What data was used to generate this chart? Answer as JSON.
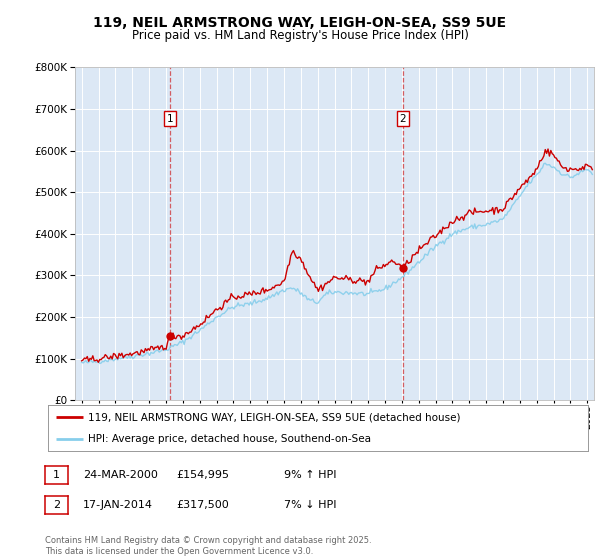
{
  "title": "119, NEIL ARMSTRONG WAY, LEIGH-ON-SEA, SS9 5UE",
  "subtitle": "Price paid vs. HM Land Registry's House Price Index (HPI)",
  "legend_line1": "119, NEIL ARMSTRONG WAY, LEIGH-ON-SEA, SS9 5UE (detached house)",
  "legend_line2": "HPI: Average price, detached house, Southend-on-Sea",
  "annotation1_date": "24-MAR-2000",
  "annotation1_price": "£154,995",
  "annotation1_hpi": "9% ↑ HPI",
  "annotation2_date": "17-JAN-2014",
  "annotation2_price": "£317,500",
  "annotation2_hpi": "7% ↓ HPI",
  "footnote": "Contains HM Land Registry data © Crown copyright and database right 2025.\nThis data is licensed under the Open Government Licence v3.0.",
  "red_color": "#cc0000",
  "blue_color": "#87CEEB",
  "background_color": "#dce8f5",
  "ylim": [
    0,
    800000
  ],
  "yticks": [
    0,
    100000,
    200000,
    300000,
    400000,
    500000,
    600000,
    700000,
    800000
  ],
  "sale1_x": 2000.23,
  "sale1_y": 154995,
  "sale2_x": 2014.05,
  "sale2_y": 317500,
  "xlim_left": 1994.6,
  "xlim_right": 2025.4
}
